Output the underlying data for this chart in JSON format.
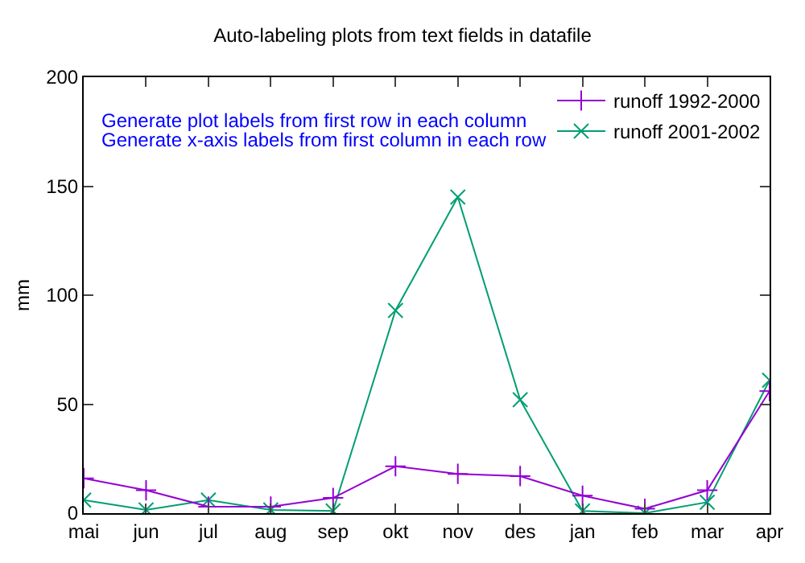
{
  "chart_data": {
    "type": "line",
    "title": "Auto-labeling plots from text fields in datafile",
    "ylabel": "mm",
    "categories": [
      "mai",
      "jun",
      "jul",
      "aug",
      "sep",
      "okt",
      "nov",
      "des",
      "jan",
      "feb",
      "mar",
      "apr"
    ],
    "series": [
      {
        "name": "runoff 1992-2000",
        "color": "#9400d3",
        "marker": "cross",
        "values": [
          16,
          10.5,
          3,
          3,
          7,
          21.5,
          18,
          17,
          8,
          2,
          10.5,
          56
        ]
      },
      {
        "name": "runoff 2001-2002",
        "color": "#009e73",
        "marker": "x",
        "values": [
          6,
          1.5,
          6,
          1.5,
          1,
          93,
          145,
          52,
          1,
          0,
          5,
          61
        ]
      }
    ],
    "ylim": [
      0,
      200
    ],
    "yticks": [
      0,
      50,
      100,
      150,
      200
    ],
    "grid": false,
    "legend": "top right",
    "annotations": [
      "Generate plot labels from first row in each column",
      "Generate x-axis labels from first column in each row"
    ]
  }
}
